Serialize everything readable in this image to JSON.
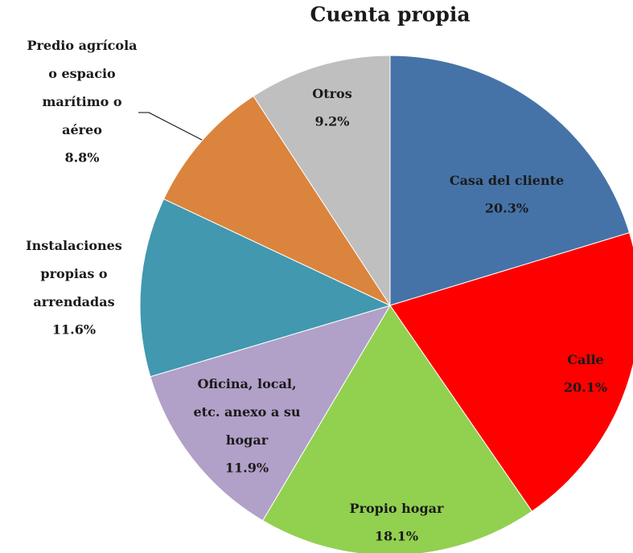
{
  "chart_data": {
    "type": "pie",
    "title": "Cuenta propia",
    "categories": [
      "Casa del cliente",
      "Calle",
      "Propio hogar",
      "Oficina, local, etc. anexo a su hogar",
      "Instalaciones propias o arrendadas",
      "Predio agrícola o espacio marítimo o aéreo",
      "Otros"
    ],
    "values": [
      20.3,
      20.1,
      18.1,
      11.9,
      11.6,
      8.8,
      9.2
    ],
    "value_labels": [
      "20.3%",
      "20.1%",
      "18.1%",
      "11.9%",
      "11.6%",
      "8.8%",
      "9.2%"
    ],
    "colors": [
      "#4573a7",
      "#ff0000",
      "#92d050",
      "#b1a0c7",
      "#4198af",
      "#db843d",
      "#bfbfbf"
    ]
  }
}
